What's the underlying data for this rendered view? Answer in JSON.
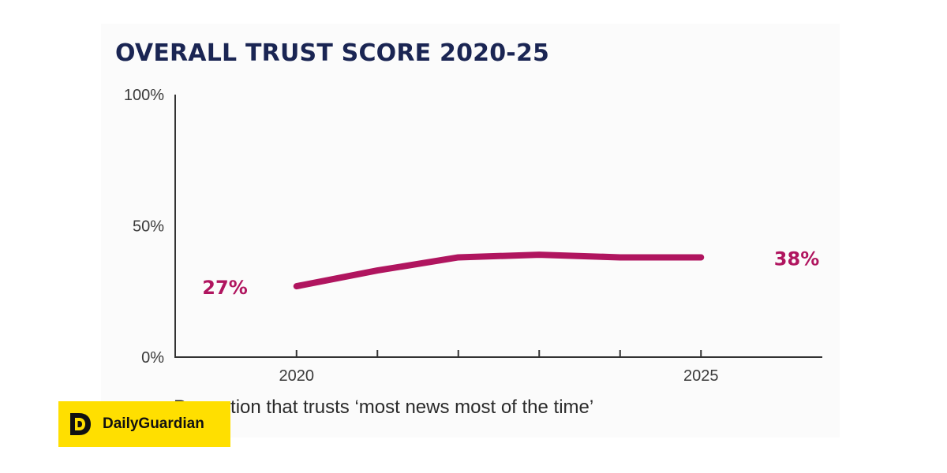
{
  "brand": {
    "name": "DailyGuardian",
    "logo_icon": "dg-logo-icon",
    "background_color": "#ffdf00"
  },
  "caption": "Proportion that trusts ‘most news most of the time’",
  "colors": {
    "title": "#1a2553",
    "line": "#b0155f",
    "axis": "#333333"
  },
  "chart_data": {
    "type": "line",
    "title": "OVERALL TRUST SCORE 2020-25",
    "xlabel": "",
    "ylabel": "",
    "x": [
      2020,
      2021,
      2022,
      2023,
      2024,
      2025
    ],
    "x_tick_labels": [
      "2020",
      "2025"
    ],
    "y_tick_labels": [
      "100%",
      "50%",
      "0%"
    ],
    "y_ticks": [
      100,
      50,
      0
    ],
    "xlim": [
      2018.5,
      2026.5
    ],
    "ylim": [
      0,
      100
    ],
    "grid": false,
    "series": [
      {
        "values": [
          27,
          33,
          38,
          39,
          38,
          38
        ],
        "color": "#b0155f"
      }
    ],
    "annotations": [
      {
        "text": "27%",
        "x": 2020,
        "y": 27,
        "anchor": "start-left"
      },
      {
        "text": "38%",
        "x": 2025,
        "y": 38,
        "anchor": "end-right"
      }
    ]
  }
}
